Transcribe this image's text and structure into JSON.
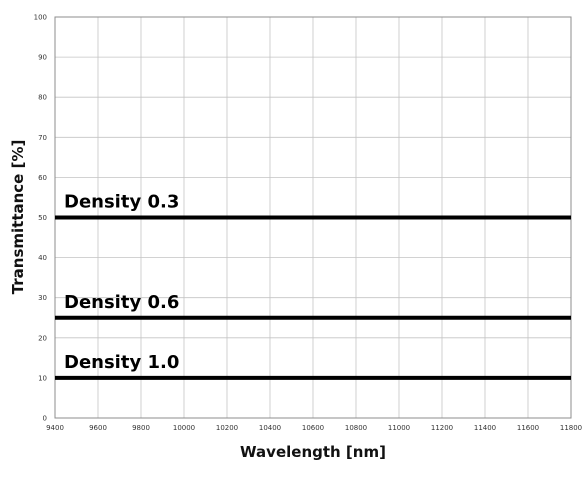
{
  "chart_data": {
    "type": "line",
    "title": "",
    "xlabel": "Wavelength [nm]",
    "ylabel": "Transmittance [%]",
    "xlim": [
      9400,
      11800
    ],
    "ylim": [
      0,
      100
    ],
    "x_ticks": [
      9400,
      9600,
      9800,
      10000,
      10200,
      10400,
      10600,
      10800,
      11000,
      11200,
      11400,
      11600,
      11800
    ],
    "y_ticks": [
      0,
      10,
      20,
      30,
      40,
      50,
      60,
      70,
      80,
      90,
      100
    ],
    "grid": true,
    "legend": "none",
    "series": [
      {
        "name": "Density 0.3",
        "x": [
          9400,
          11800
        ],
        "values": [
          50,
          50
        ],
        "color": "#000000"
      },
      {
        "name": "Density 0.6",
        "x": [
          9400,
          11800
        ],
        "values": [
          25,
          25
        ],
        "color": "#000000"
      },
      {
        "name": "Density 1.0",
        "x": [
          9400,
          11800
        ],
        "values": [
          10,
          10
        ],
        "color": "#000000"
      }
    ]
  }
}
